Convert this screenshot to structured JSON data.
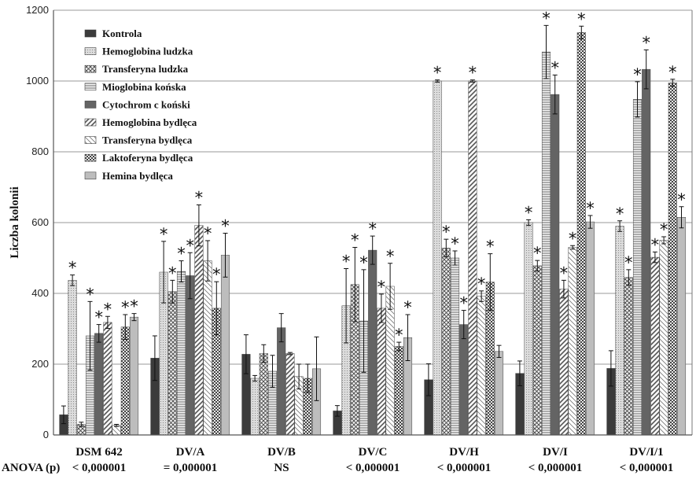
{
  "chart_data": {
    "type": "bar",
    "ylabel": "Liczba kolonii",
    "ylim": [
      0,
      1200
    ],
    "yticks": [
      "0",
      "200",
      "400",
      "600",
      "800",
      "1000",
      "1200"
    ],
    "grid": true,
    "legend_position": "top-left",
    "categories": [
      "DSM 642",
      "DV/A",
      "DV/B",
      "DV/C",
      "DV/H",
      "DV/I",
      "DV/I/1"
    ],
    "anova": {
      "label": "ANOVA (p)",
      "values": [
        "< 0,000001",
        "= 0,000001",
        "NS",
        "< 0,000001",
        "< 0,000001",
        "< 0,000001",
        "< 0,000001"
      ]
    },
    "significance_marker": "*",
    "series": [
      {
        "name": "Kontrola",
        "fill": "#3b3b3b",
        "pattern": "solid",
        "values": [
          57,
          217,
          228,
          68,
          156,
          174,
          188
        ],
        "errors": [
          25,
          63,
          55,
          15,
          45,
          35,
          50
        ],
        "significant": [
          false,
          false,
          false,
          false,
          false,
          false,
          false
        ]
      },
      {
        "name": "Hemoglobina ludzka",
        "fill": "#d2d2d2",
        "pattern": "dots",
        "values": [
          437,
          460,
          160,
          365,
          1000,
          600,
          590
        ],
        "errors": [
          15,
          87,
          8,
          105,
          3,
          8,
          15
        ],
        "significant": [
          true,
          true,
          false,
          true,
          true,
          true,
          true
        ]
      },
      {
        "name": "Transferyna ludzka",
        "fill": "#efefef",
        "pattern": "diag-cross",
        "values": [
          30,
          405,
          230,
          425,
          528,
          478,
          445
        ],
        "errors": [
          6,
          32,
          25,
          105,
          25,
          15,
          22
        ],
        "significant": [
          false,
          true,
          false,
          true,
          true,
          true,
          true
        ]
      },
      {
        "name": "Mioglobina końska",
        "fill": "#f3f3f3",
        "pattern": "horizontal",
        "values": [
          280,
          462,
          180,
          322,
          500,
          1082,
          948
        ],
        "errors": [
          97,
          30,
          45,
          145,
          20,
          75,
          50
        ],
        "significant": [
          true,
          true,
          false,
          true,
          true,
          true,
          true
        ]
      },
      {
        "name": "Cytochrom c koński",
        "fill": "#646464",
        "pattern": "solid",
        "values": [
          287,
          450,
          303,
          522,
          312,
          962,
          1033
        ],
        "errors": [
          25,
          65,
          40,
          40,
          40,
          55,
          55
        ],
        "significant": [
          true,
          true,
          false,
          true,
          true,
          true,
          true
        ]
      },
      {
        "name": "Hemoglobina bydlęca",
        "fill": "#f6f6f6",
        "pattern": "diag-thick",
        "values": [
          318,
          592,
          230,
          358,
          1000,
          412,
          502
        ],
        "errors": [
          17,
          58,
          3,
          40,
          3,
          25,
          15
        ],
        "significant": [
          true,
          true,
          false,
          true,
          true,
          true,
          true
        ]
      },
      {
        "name": "Transferyna bydlęca",
        "fill": "#ffffff",
        "pattern": "diag-thin",
        "values": [
          27,
          492,
          165,
          420,
          392,
          530,
          550
        ],
        "errors": [
          3,
          57,
          35,
          65,
          15,
          5,
          10
        ],
        "significant": [
          false,
          true,
          false,
          true,
          true,
          true,
          true
        ]
      },
      {
        "name": "Laktoferyna bydlęca",
        "fill": "#e0e0e0",
        "pattern": "checker",
        "values": [
          305,
          358,
          160,
          250,
          432,
          1137,
          995
        ],
        "errors": [
          35,
          75,
          40,
          12,
          80,
          18,
          10
        ],
        "significant": [
          true,
          true,
          false,
          true,
          true,
          true,
          true
        ]
      },
      {
        "name": "Hemina bydlęca",
        "fill": "#bdbdbd",
        "pattern": "solid",
        "values": [
          333,
          508,
          187,
          275,
          236,
          602,
          615
        ],
        "errors": [
          10,
          62,
          90,
          65,
          17,
          18,
          30
        ],
        "significant": [
          true,
          true,
          false,
          true,
          false,
          true,
          true
        ]
      }
    ]
  }
}
